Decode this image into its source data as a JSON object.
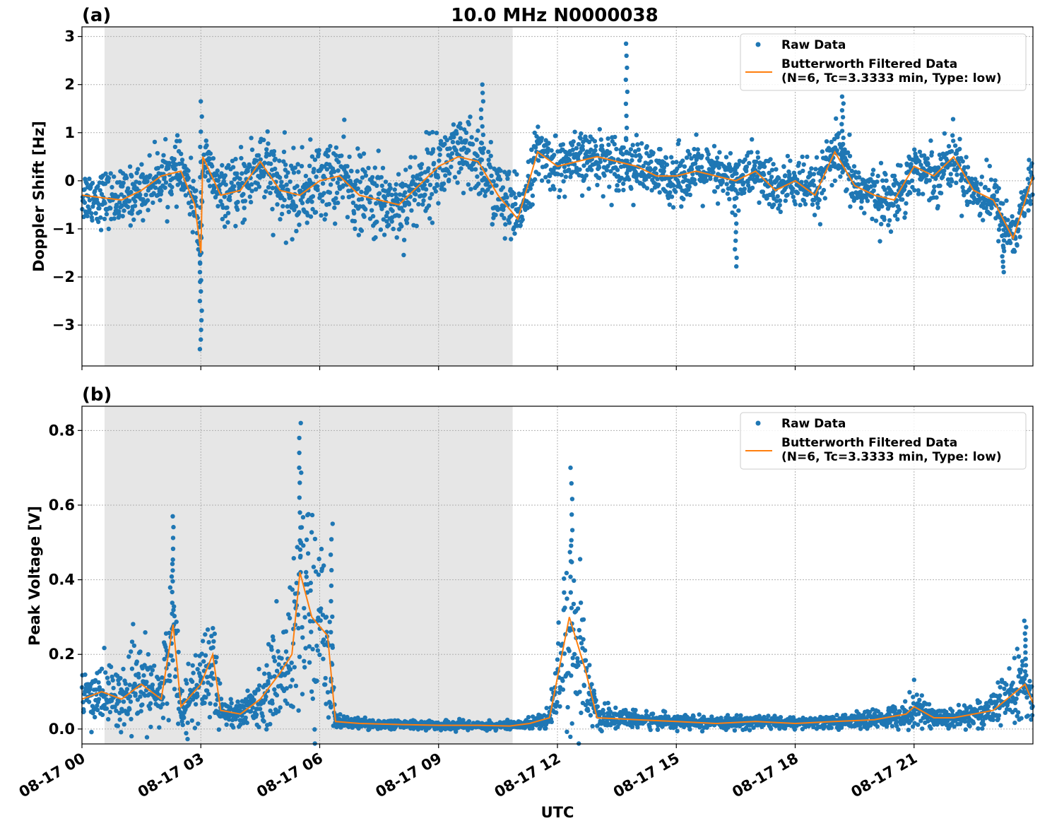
{
  "figure": {
    "title": "10.0 MHz N0000038",
    "xlabel": "UTC"
  },
  "chart_data": [
    {
      "type": "scatter",
      "panel_label": "(a)",
      "ylabel": "Doppler Shift [Hz]",
      "xlim": [
        0,
        24
      ],
      "ylim": [
        -3.85,
        3.2
      ],
      "yticks": [
        -3,
        -2,
        -1,
        0,
        1,
        2,
        3
      ],
      "ytick_labels": [
        "−3",
        "−2",
        "−1",
        "0",
        "1",
        "2",
        "3"
      ],
      "xticks": [
        0,
        3,
        6,
        9,
        12,
        15,
        18,
        21
      ],
      "xtick_labels": [
        "08-17 00",
        "08-17 03",
        "08-17 06",
        "08-17 09",
        "08-17 12",
        "08-17 15",
        "08-17 18",
        "08-17 21"
      ],
      "shaded_span": [
        0.57,
        10.87
      ],
      "grid": true,
      "legend_position": "top-right",
      "series": [
        {
          "name": "Raw Data",
          "kind": "scatter",
          "color": "#1f77b4",
          "x": [
            0,
            0.5,
            1,
            1.5,
            2,
            2.5,
            2.85,
            3,
            3.05,
            3.5,
            4,
            4.5,
            5,
            5.5,
            6,
            6.5,
            7,
            7.5,
            8,
            8.5,
            9,
            9.5,
            10,
            10.5,
            11,
            11.5,
            12,
            12.5,
            13,
            13.5,
            14,
            14.5,
            15,
            15.5,
            16,
            16.5,
            17,
            17.5,
            18,
            18.5,
            19,
            19.5,
            20,
            20.5,
            21,
            21.5,
            22,
            22.5,
            23,
            23.5,
            24
          ],
          "y": [
            -0.3,
            -0.35,
            -0.4,
            -0.2,
            0.1,
            0.2,
            -0.5,
            -1.5,
            0.5,
            -0.3,
            -0.2,
            0.4,
            -0.2,
            -0.3,
            0.0,
            0.1,
            -0.3,
            -0.4,
            -0.5,
            -0.1,
            0.3,
            0.5,
            0.4,
            -0.3,
            -0.8,
            0.6,
            0.3,
            0.4,
            0.5,
            0.4,
            0.3,
            0.1,
            0.1,
            0.2,
            0.1,
            0.0,
            0.2,
            -0.2,
            0.0,
            -0.3,
            0.6,
            -0.1,
            -0.3,
            -0.4,
            0.3,
            0.1,
            0.5,
            -0.2,
            -0.4,
            -1.2,
            0.1
          ],
          "extremes": [
            {
              "x": 3.0,
              "y": -3.5
            },
            {
              "x": 3.0,
              "y": 1.65
            },
            {
              "x": 10.1,
              "y": 2.0
            },
            {
              "x": 13.75,
              "y": 2.85
            },
            {
              "x": 16.5,
              "y": -1.78
            },
            {
              "x": 19.2,
              "y": 1.75
            },
            {
              "x": 23.25,
              "y": -1.9
            }
          ]
        },
        {
          "name": "Butterworth Filtered Data\n(N=6, Tc=3.3333 min, Type: low)",
          "kind": "line",
          "color": "#ff7f0e",
          "x": [
            0,
            0.5,
            1,
            1.5,
            2,
            2.5,
            2.85,
            3,
            3.05,
            3.5,
            4,
            4.5,
            5,
            5.5,
            6,
            6.5,
            7,
            7.5,
            8,
            8.5,
            9,
            9.5,
            10,
            10.5,
            11,
            11.5,
            12,
            12.5,
            13,
            13.5,
            14,
            14.5,
            15,
            15.5,
            16,
            16.5,
            17,
            17.5,
            18,
            18.5,
            19,
            19.5,
            20,
            20.5,
            21,
            21.5,
            22,
            22.5,
            23,
            23.5,
            24
          ],
          "y": [
            -0.3,
            -0.35,
            -0.4,
            -0.2,
            0.1,
            0.2,
            -0.5,
            -1.5,
            0.5,
            -0.3,
            -0.2,
            0.4,
            -0.2,
            -0.3,
            0.0,
            0.1,
            -0.3,
            -0.4,
            -0.5,
            -0.1,
            0.3,
            0.5,
            0.4,
            -0.3,
            -0.8,
            0.6,
            0.3,
            0.4,
            0.5,
            0.4,
            0.3,
            0.1,
            0.1,
            0.2,
            0.1,
            0.0,
            0.2,
            -0.2,
            0.0,
            -0.3,
            0.6,
            -0.1,
            -0.3,
            -0.4,
            0.3,
            0.1,
            0.5,
            -0.2,
            -0.4,
            -1.2,
            0.1
          ]
        }
      ]
    },
    {
      "type": "scatter",
      "panel_label": "(b)",
      "ylabel": "Peak Voltage [V]",
      "xlim": [
        0,
        24
      ],
      "ylim": [
        -0.04,
        0.865
      ],
      "yticks": [
        0.0,
        0.2,
        0.4,
        0.6,
        0.8
      ],
      "ytick_labels": [
        "0.0",
        "0.2",
        "0.4",
        "0.6",
        "0.8"
      ],
      "xticks": [
        0,
        3,
        6,
        9,
        12,
        15,
        18,
        21
      ],
      "xtick_labels": [
        "08-17 00",
        "08-17 03",
        "08-17 06",
        "08-17 09",
        "08-17 12",
        "08-17 15",
        "08-17 18",
        "08-17 21"
      ],
      "shaded_span": [
        0.57,
        10.87
      ],
      "grid": true,
      "legend_position": "top-right",
      "series": [
        {
          "name": "Raw Data",
          "kind": "scatter",
          "color": "#1f77b4",
          "x": [
            0,
            0.5,
            1,
            1.5,
            2,
            2.3,
            2.5,
            3,
            3.3,
            3.5,
            4,
            4.5,
            5,
            5.3,
            5.5,
            5.8,
            6.2,
            6.4,
            7,
            8,
            9,
            10,
            10.8,
            11.3,
            11.8,
            12.3,
            12.7,
            13,
            14,
            15,
            16,
            17,
            18,
            19,
            20,
            20.8,
            21,
            21.5,
            22,
            23,
            23.8,
            24
          ],
          "y": [
            0.08,
            0.1,
            0.08,
            0.12,
            0.08,
            0.28,
            0.06,
            0.12,
            0.2,
            0.05,
            0.04,
            0.08,
            0.15,
            0.2,
            0.42,
            0.3,
            0.25,
            0.02,
            0.015,
            0.012,
            0.01,
            0.01,
            0.008,
            0.015,
            0.03,
            0.3,
            0.16,
            0.03,
            0.025,
            0.02,
            0.015,
            0.02,
            0.015,
            0.02,
            0.025,
            0.04,
            0.06,
            0.03,
            0.03,
            0.05,
            0.12,
            0.07
          ],
          "extremes": [
            {
              "x": 2.3,
              "y": 0.57
            },
            {
              "x": 5.5,
              "y": 0.82
            },
            {
              "x": 6.3,
              "y": 0.55
            },
            {
              "x": 12.35,
              "y": 0.7
            },
            {
              "x": 23.8,
              "y": 0.29
            }
          ]
        },
        {
          "name": "Butterworth Filtered Data\n(N=6, Tc=3.3333 min, Type: low)",
          "kind": "line",
          "color": "#ff7f0e",
          "x": [
            0,
            0.5,
            1,
            1.5,
            2,
            2.3,
            2.5,
            3,
            3.3,
            3.5,
            4,
            4.5,
            5,
            5.3,
            5.5,
            5.8,
            6.2,
            6.4,
            7,
            8,
            9,
            10,
            10.8,
            11.3,
            11.8,
            12.3,
            12.7,
            13,
            14,
            15,
            16,
            17,
            18,
            19,
            20,
            20.8,
            21,
            21.5,
            22,
            23,
            23.8,
            24
          ],
          "y": [
            0.08,
            0.1,
            0.08,
            0.12,
            0.08,
            0.28,
            0.06,
            0.12,
            0.2,
            0.05,
            0.04,
            0.08,
            0.15,
            0.2,
            0.42,
            0.3,
            0.25,
            0.02,
            0.015,
            0.012,
            0.01,
            0.01,
            0.008,
            0.015,
            0.03,
            0.3,
            0.16,
            0.03,
            0.025,
            0.02,
            0.015,
            0.02,
            0.015,
            0.02,
            0.025,
            0.04,
            0.06,
            0.03,
            0.03,
            0.05,
            0.12,
            0.07
          ]
        }
      ]
    }
  ]
}
